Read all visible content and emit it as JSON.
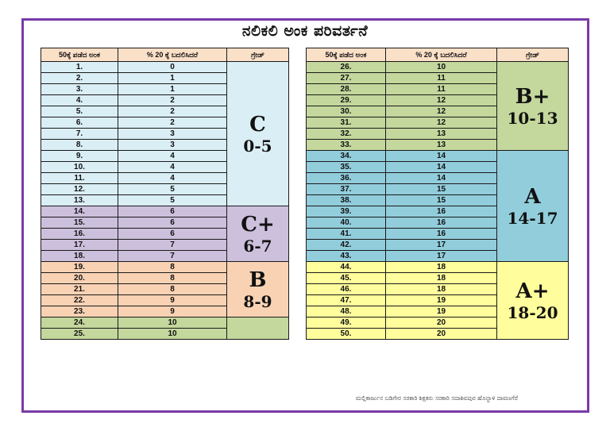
{
  "title": "ನಲಿಕಲಿ ಅಂಕ ಪರಿವರ್ತನೆ",
  "headers": {
    "col1": "50ಕ್ಕೆ ಪಡೆದ ಅಂಕ",
    "col2": "% 20 ಕ್ಕೆ ಬದಲಿಸಿದರೆ",
    "col3": "ಗ್ರೇಡ್"
  },
  "left_rows": [
    [
      "1.",
      "0"
    ],
    [
      "2.",
      "1"
    ],
    [
      "3.",
      "1"
    ],
    [
      "4.",
      "2"
    ],
    [
      "5.",
      "2"
    ],
    [
      "6.",
      "2"
    ],
    [
      "7.",
      "3"
    ],
    [
      "8.",
      "3"
    ],
    [
      "9.",
      "4"
    ],
    [
      "10.",
      "4"
    ],
    [
      "11.",
      "4"
    ],
    [
      "12.",
      "5"
    ],
    [
      "13.",
      "5"
    ],
    [
      "14.",
      "6"
    ],
    [
      "15.",
      "6"
    ],
    [
      "16.",
      "6"
    ],
    [
      "17.",
      "7"
    ],
    [
      "18.",
      "7"
    ],
    [
      "19.",
      "8"
    ],
    [
      "20.",
      "8"
    ],
    [
      "21.",
      "8"
    ],
    [
      "22.",
      "9"
    ],
    [
      "23.",
      "9"
    ],
    [
      "24.",
      "10"
    ],
    [
      "25.",
      "10"
    ]
  ],
  "right_rows": [
    [
      "26.",
      "10"
    ],
    [
      "27.",
      "11"
    ],
    [
      "28.",
      "11"
    ],
    [
      "29.",
      "12"
    ],
    [
      "30.",
      "12"
    ],
    [
      "31.",
      "12"
    ],
    [
      "32.",
      "13"
    ],
    [
      "33.",
      "13"
    ],
    [
      "34.",
      "14"
    ],
    [
      "35.",
      "14"
    ],
    [
      "36.",
      "14"
    ],
    [
      "37.",
      "15"
    ],
    [
      "38.",
      "15"
    ],
    [
      "39.",
      "16"
    ],
    [
      "40.",
      "16"
    ],
    [
      "41.",
      "16"
    ],
    [
      "42.",
      "17"
    ],
    [
      "43.",
      "17"
    ],
    [
      "44.",
      "18"
    ],
    [
      "45.",
      "18"
    ],
    [
      "46.",
      "18"
    ],
    [
      "47.",
      "19"
    ],
    [
      "48.",
      "19"
    ],
    [
      "49.",
      "20"
    ],
    [
      "50.",
      "20"
    ]
  ],
  "grades": {
    "c": {
      "grade": "C",
      "range": "0-5"
    },
    "cplus": {
      "grade": "C+",
      "range": "6-7"
    },
    "b": {
      "grade": "B",
      "range": "8-9"
    },
    "bplus": {
      "grade": "B+",
      "range": "10-13"
    },
    "a": {
      "grade": "A",
      "range": "14-17"
    },
    "aplus": {
      "grade": "A+",
      "range": "18-20"
    }
  },
  "credit": "ಮಲ್ಲಿಕಾರ್ಜುನ ಬಡಿಗೇರ ಸರಕಾರಿ ಶಿಕ್ಷಕರು ಸರಕಾರಿ ಸದಾಶಿವಪುರ ಹೊನ್ನಾಳಿ ದಾವಣಗೆರೆ",
  "colors": {
    "frame": "#7a3aa8",
    "header": "#fbe0c8",
    "band_c": "#daeef5",
    "band_cplus": "#ccc0dc",
    "band_b": "#f9d2b4",
    "band_bplus": "#c4d79c",
    "band_a": "#92cddc",
    "band_aplus": "#fffd9c"
  }
}
